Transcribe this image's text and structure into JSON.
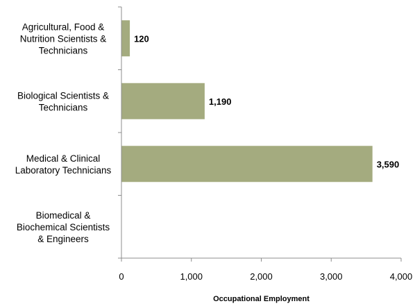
{
  "chart_data": {
    "type": "bar",
    "orientation": "horizontal",
    "categories": [
      [
        "Agricultural, Food &",
        "Nutrition Scientists &",
        "Technicians"
      ],
      [
        "Biological Scientists &",
        "Technicians"
      ],
      [
        "Medical & Clinical",
        "Laboratory Technicians"
      ],
      [
        "Biomedical &",
        "Biochemical Scientists",
        "& Engineers"
      ]
    ],
    "values": [
      120,
      1190,
      3590,
      null
    ],
    "data_labels": [
      "120",
      "1,190",
      "3,590",
      ""
    ],
    "xlabel": "Occupational Employment",
    "ylabel": "",
    "xlim": [
      0,
      4000
    ],
    "x_ticks": [
      0,
      1000,
      2000,
      3000,
      4000
    ],
    "x_tick_labels": [
      "0",
      "1,000",
      "2,000",
      "3,000",
      "4,000"
    ],
    "grid": false,
    "legend": "none",
    "bar_color": "#a4ab7f"
  }
}
